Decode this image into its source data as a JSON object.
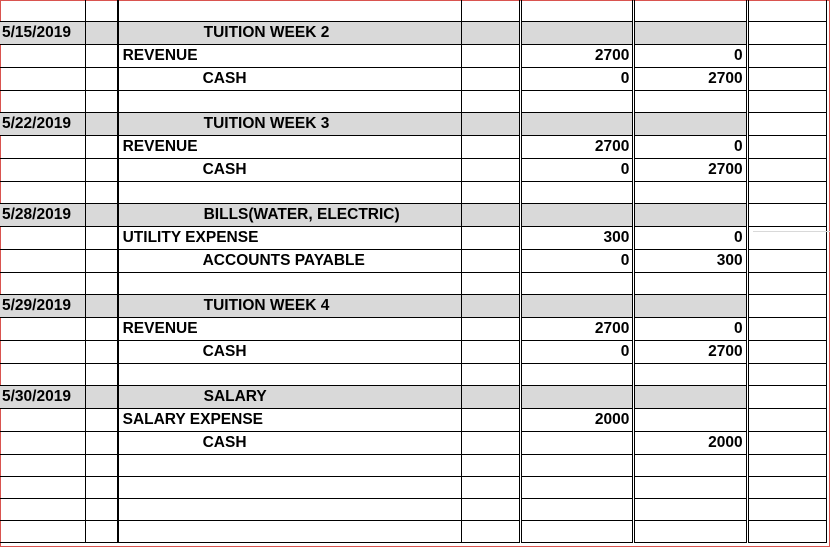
{
  "entries": [
    {
      "date": "5/15/2019",
      "title": "TUITION WEEK 2",
      "debit_account": "REVENUE",
      "credit_account": "CASH",
      "debit_amounts": [
        "2700",
        "0"
      ],
      "credit_amounts": [
        "0",
        "2700"
      ]
    },
    {
      "date": "5/22/2019",
      "title": "TUITION WEEK 3",
      "debit_account": "REVENUE",
      "credit_account": "CASH",
      "debit_amounts": [
        "2700",
        "0"
      ],
      "credit_amounts": [
        "0",
        "2700"
      ]
    },
    {
      "date": "5/28/2019",
      "title": "BILLS(WATER, ELECTRIC)",
      "debit_account": "UTILITY EXPENSE",
      "credit_account": "ACCOUNTS PAYABLE",
      "debit_amounts": [
        "300",
        "0"
      ],
      "credit_amounts": [
        "0",
        "300"
      ]
    },
    {
      "date": "5/29/2019",
      "title": "TUITION WEEK 4",
      "debit_account": "REVENUE",
      "credit_account": "CASH",
      "debit_amounts": [
        "2700",
        "0"
      ],
      "credit_amounts": [
        "0",
        "2700"
      ]
    },
    {
      "date": "5/30/2019",
      "title": "SALARY",
      "debit_account": "SALARY EXPENSE",
      "credit_account": "CASH",
      "debit_amounts": [
        "2000",
        ""
      ],
      "credit_amounts": [
        "",
        "2000"
      ]
    }
  ]
}
